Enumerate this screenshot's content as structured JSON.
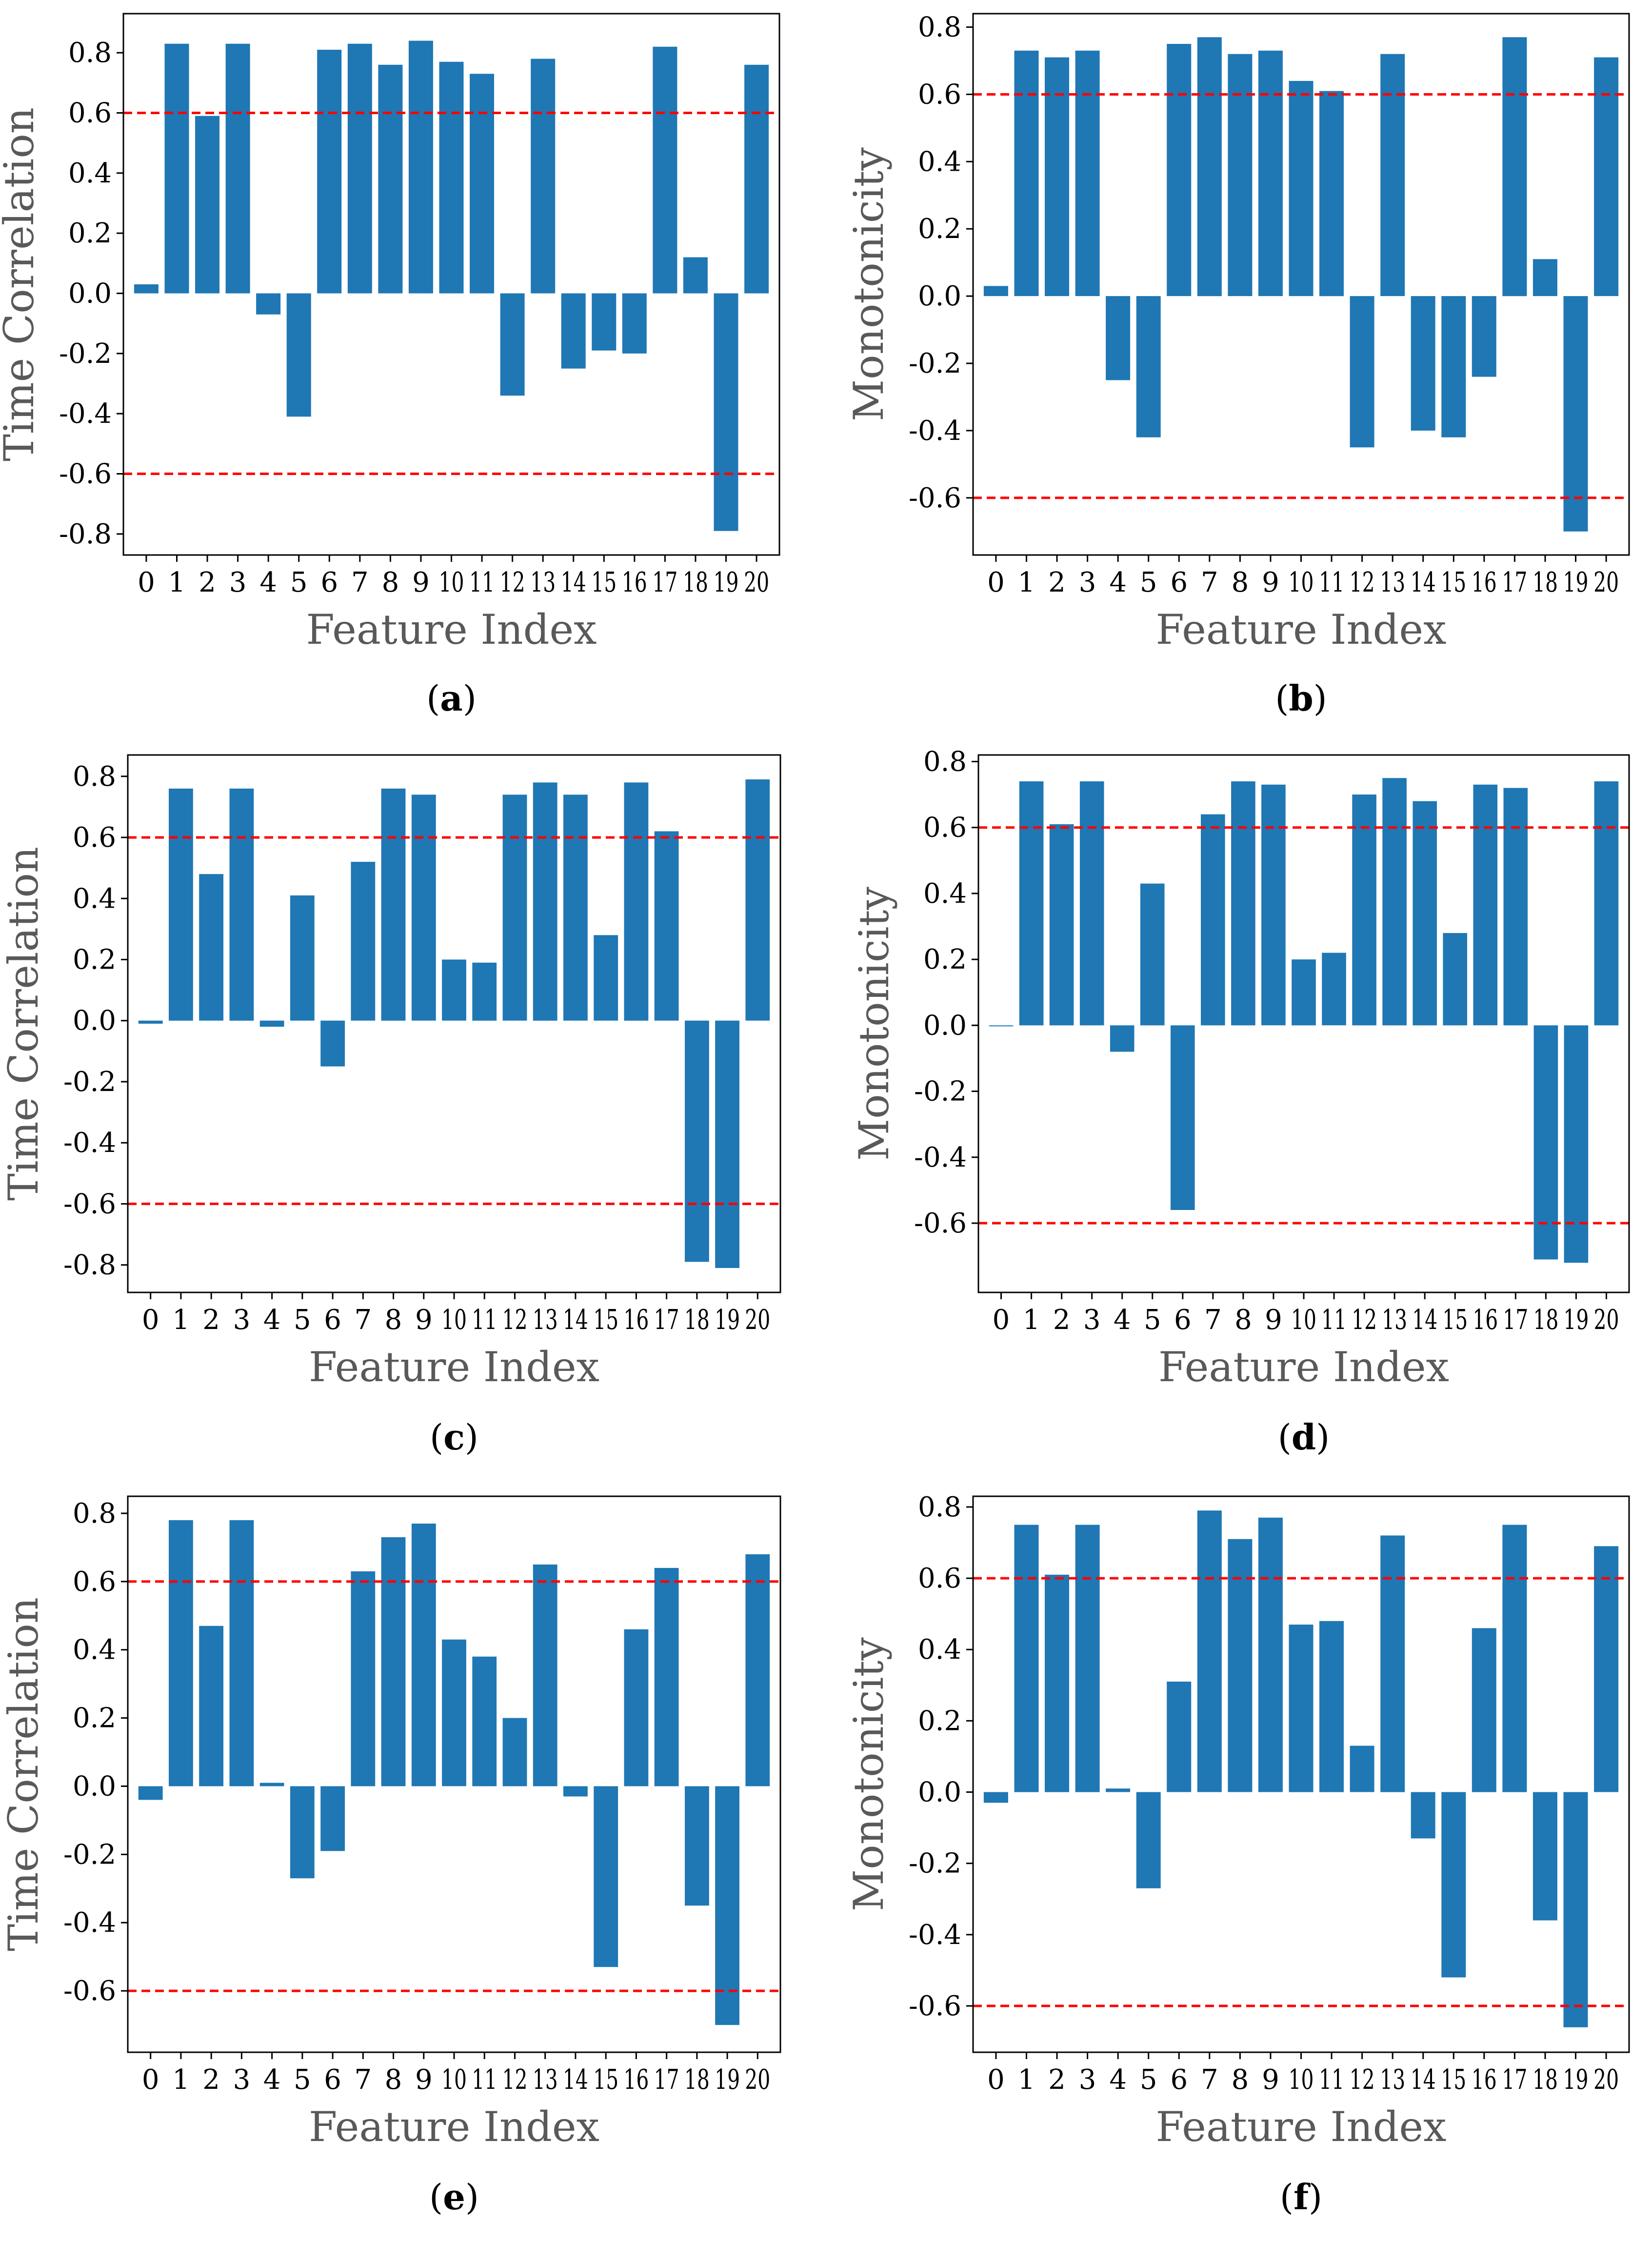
{
  "colors": {
    "bar": "#1f77b4",
    "threshold": "#ff0000",
    "frame": "#000000"
  },
  "chart_data": [
    {
      "type": "bar",
      "panel": "a",
      "caption": "(a)",
      "ylabel": "Time Correlation",
      "xlabel": "Feature Index",
      "categories": [
        "0",
        "1",
        "2",
        "3",
        "4",
        "5",
        "6",
        "7",
        "8",
        "9",
        "10",
        "11",
        "12",
        "13",
        "14",
        "15",
        "16",
        "17",
        "18",
        "19",
        "20"
      ],
      "values": [
        0.03,
        0.83,
        0.59,
        0.83,
        -0.07,
        -0.41,
        0.81,
        0.83,
        0.76,
        0.84,
        0.77,
        0.73,
        -0.34,
        0.78,
        -0.25,
        -0.19,
        -0.2,
        0.82,
        0.12,
        -0.79,
        0.76
      ],
      "yticks": [
        "-0.8",
        "-0.6",
        "-0.4",
        "-0.2",
        "0.0",
        "0.2",
        "0.4",
        "0.6",
        "0.8"
      ],
      "ylim": [
        -0.87,
        0.93
      ],
      "thresholds": [
        0.6,
        -0.6
      ]
    },
    {
      "type": "bar",
      "panel": "b",
      "caption": "(b)",
      "ylabel": "Monotonicity",
      "xlabel": "Feature Index",
      "categories": [
        "0",
        "1",
        "2",
        "3",
        "4",
        "5",
        "6",
        "7",
        "8",
        "9",
        "10",
        "11",
        "12",
        "13",
        "14",
        "15",
        "16",
        "17",
        "18",
        "19",
        "20"
      ],
      "values": [
        0.03,
        0.73,
        0.71,
        0.73,
        -0.25,
        -0.42,
        0.75,
        0.77,
        0.72,
        0.73,
        0.64,
        0.61,
        -0.45,
        0.72,
        -0.4,
        -0.42,
        -0.24,
        0.77,
        0.11,
        -0.7,
        0.71
      ],
      "yticks": [
        "-0.6",
        "-0.4",
        "-0.2",
        "0.0",
        "0.2",
        "0.4",
        "0.6",
        "0.8"
      ],
      "ylim": [
        -0.77,
        0.84
      ],
      "thresholds": [
        0.6,
        -0.6
      ]
    },
    {
      "type": "bar",
      "panel": "c",
      "caption": "(c)",
      "ylabel": "Time Correlation",
      "xlabel": "Feature Index",
      "categories": [
        "0",
        "1",
        "2",
        "3",
        "4",
        "5",
        "6",
        "7",
        "8",
        "9",
        "10",
        "11",
        "12",
        "13",
        "14",
        "15",
        "16",
        "17",
        "18",
        "19",
        "20"
      ],
      "values": [
        -0.01,
        0.76,
        0.48,
        0.76,
        -0.02,
        0.41,
        -0.15,
        0.52,
        0.76,
        0.74,
        0.2,
        0.19,
        0.74,
        0.78,
        0.74,
        0.28,
        0.78,
        0.62,
        -0.79,
        -0.81,
        0.79
      ],
      "yticks": [
        "-0.8",
        "-0.6",
        "-0.4",
        "-0.2",
        "0.0",
        "0.2",
        "0.4",
        "0.6",
        "0.8"
      ],
      "ylim": [
        -0.89,
        0.87
      ],
      "thresholds": [
        0.6,
        -0.6
      ]
    },
    {
      "type": "bar",
      "panel": "d",
      "caption": "(d)",
      "ylabel": "Monotonicity",
      "xlabel": "Feature Index",
      "categories": [
        "0",
        "1",
        "2",
        "3",
        "4",
        "5",
        "6",
        "7",
        "8",
        "9",
        "10",
        "11",
        "12",
        "13",
        "14",
        "15",
        "16",
        "17",
        "18",
        "19",
        "20"
      ],
      "values": [
        0.0,
        0.74,
        0.61,
        0.74,
        -0.08,
        0.43,
        -0.56,
        0.64,
        0.74,
        0.73,
        0.2,
        0.22,
        0.7,
        0.75,
        0.68,
        0.28,
        0.73,
        0.72,
        -0.71,
        -0.72,
        0.74
      ],
      "yticks": [
        "-0.6",
        "-0.4",
        "-0.2",
        "0.0",
        "0.2",
        "0.4",
        "0.6",
        "0.8"
      ],
      "ylim": [
        -0.81,
        0.82
      ],
      "thresholds": [
        0.6,
        -0.6
      ]
    },
    {
      "type": "bar",
      "panel": "e",
      "caption": "(e)",
      "ylabel": "Time Correlation",
      "xlabel": "Feature Index",
      "categories": [
        "0",
        "1",
        "2",
        "3",
        "4",
        "5",
        "6",
        "7",
        "8",
        "9",
        "10",
        "11",
        "12",
        "13",
        "14",
        "15",
        "16",
        "17",
        "18",
        "19",
        "20"
      ],
      "values": [
        -0.04,
        0.78,
        0.47,
        0.78,
        0.01,
        -0.27,
        -0.19,
        0.63,
        0.73,
        0.77,
        0.43,
        0.38,
        0.2,
        0.65,
        -0.03,
        -0.53,
        0.46,
        0.64,
        -0.35,
        -0.7,
        0.68
      ],
      "yticks": [
        "-0.6",
        "-0.4",
        "-0.2",
        "0.0",
        "0.2",
        "0.4",
        "0.6",
        "0.8"
      ],
      "ylim": [
        -0.78,
        0.85
      ],
      "thresholds": [
        0.6,
        -0.6
      ]
    },
    {
      "type": "bar",
      "panel": "f",
      "caption": "(f)",
      "ylabel": "Monotonicity",
      "xlabel": "Feature Index",
      "categories": [
        "0",
        "1",
        "2",
        "3",
        "4",
        "5",
        "6",
        "7",
        "8",
        "9",
        "10",
        "11",
        "12",
        "13",
        "14",
        "15",
        "16",
        "17",
        "18",
        "19",
        "20"
      ],
      "values": [
        -0.03,
        0.75,
        0.61,
        0.75,
        0.01,
        -0.27,
        0.31,
        0.79,
        0.71,
        0.77,
        0.47,
        0.48,
        0.13,
        0.72,
        -0.13,
        -0.52,
        0.46,
        0.75,
        -0.36,
        -0.66,
        0.69
      ],
      "yticks": [
        "-0.6",
        "-0.4",
        "-0.2",
        "0.0",
        "0.2",
        "0.4",
        "0.6",
        "0.8"
      ],
      "ylim": [
        -0.73,
        0.83
      ],
      "thresholds": [
        0.6,
        -0.6
      ]
    }
  ]
}
